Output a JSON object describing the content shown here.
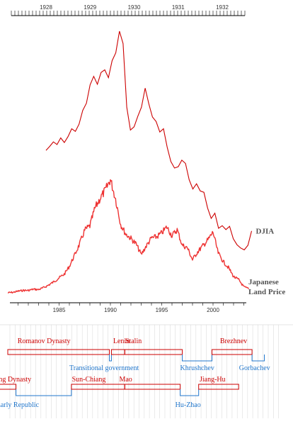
{
  "chart_data": [
    {
      "type": "line",
      "x_axis_position": "top",
      "x": [
        "1928",
        "1929",
        "1930",
        "1931",
        "1932"
      ],
      "series": [
        {
          "name": "DJIA",
          "color": "#cc0000",
          "points": [
            [
              "1928-01",
              199
            ],
            [
              "1928-02",
              205
            ],
            [
              "1928-03",
              212
            ],
            [
              "1928-04",
              208
            ],
            [
              "1928-05",
              218
            ],
            [
              "1928-06",
              211
            ],
            [
              "1928-07",
              220
            ],
            [
              "1928-08",
              232
            ],
            [
              "1928-09",
              228
            ],
            [
              "1928-10",
              239
            ],
            [
              "1928-11",
              260
            ],
            [
              "1928-12",
              271
            ],
            [
              "1929-01",
              299
            ],
            [
              "1929-02",
              312
            ],
            [
              "1929-03",
              300
            ],
            [
              "1929-04",
              318
            ],
            [
              "1929-05",
              322
            ],
            [
              "1929-06",
              310
            ],
            [
              "1929-07",
              336
            ],
            [
              "1929-08",
              348
            ],
            [
              "1929-09",
              381
            ],
            [
              "1929-10",
              362
            ],
            [
              "1929-11",
              265
            ],
            [
              "1929-12",
              230
            ],
            [
              "1930-01",
              235
            ],
            [
              "1930-02",
              251
            ],
            [
              "1930-03",
              265
            ],
            [
              "1930-04",
              294
            ],
            [
              "1930-05",
              270
            ],
            [
              "1930-06",
              250
            ],
            [
              "1930-07",
              243
            ],
            [
              "1930-08",
              227
            ],
            [
              "1930-09",
              232
            ],
            [
              "1930-10",
              204
            ],
            [
              "1930-11",
              182
            ],
            [
              "1930-12",
              172
            ],
            [
              "1931-01",
              174
            ],
            [
              "1931-02",
              184
            ],
            [
              "1931-03",
              179
            ],
            [
              "1931-04",
              154
            ],
            [
              "1931-05",
              140
            ],
            [
              "1931-06",
              148
            ],
            [
              "1931-07",
              137
            ],
            [
              "1931-08",
              135
            ],
            [
              "1931-09",
              111
            ],
            [
              "1931-10",
              95
            ],
            [
              "1931-11",
              103
            ],
            [
              "1931-12",
              80
            ],
            [
              "1932-01",
              84
            ],
            [
              "1932-02",
              78
            ],
            [
              "1932-03",
              83
            ],
            [
              "1932-04",
              64
            ],
            [
              "1932-05",
              55
            ],
            [
              "1932-06",
              50
            ],
            [
              "1932-07",
              47
            ],
            [
              "1932-08",
              54
            ],
            [
              "1932-09",
              76
            ]
          ]
        }
      ]
    },
    {
      "type": "line",
      "x_axis_position": "bottom",
      "x": [
        "1985",
        "1990",
        "1995",
        "2000"
      ],
      "series": [
        {
          "name": "Japanese Land Price",
          "color": "#ee3333",
          "points": [
            [
              1980.0,
              11
            ],
            [
              1980.5,
              12
            ],
            [
              1981.0,
              15
            ],
            [
              1981.5,
              17
            ],
            [
              1982.0,
              17
            ],
            [
              1982.5,
              20
            ],
            [
              1983.0,
              19
            ],
            [
              1983.5,
              24
            ],
            [
              1984.0,
              31
            ],
            [
              1984.5,
              39
            ],
            [
              1985.0,
              49
            ],
            [
              1985.5,
              58
            ],
            [
              1986.0,
              78
            ],
            [
              1986.5,
              106
            ],
            [
              1987.0,
              135
            ],
            [
              1987.5,
              170
            ],
            [
              1988.0,
              181
            ],
            [
              1988.5,
              226
            ],
            [
              1989.0,
              251
            ],
            [
              1989.5,
              271
            ],
            [
              1990.0,
              299
            ],
            [
              1990.5,
              250
            ],
            [
              1991.0,
              185
            ],
            [
              1991.5,
              160
            ],
            [
              1992.0,
              149
            ],
            [
              1992.5,
              135
            ],
            [
              1993.0,
              108
            ],
            [
              1993.5,
              130
            ],
            [
              1994.0,
              150
            ],
            [
              1994.5,
              153
            ],
            [
              1995.0,
              163
            ],
            [
              1995.5,
              178
            ],
            [
              1996.0,
              156
            ],
            [
              1996.5,
              171
            ],
            [
              1997.0,
              132
            ],
            [
              1997.5,
              125
            ],
            [
              1998.0,
              95
            ],
            [
              1998.5,
              115
            ],
            [
              1999.0,
              130
            ],
            [
              1999.5,
              145
            ],
            [
              2000.0,
              165
            ],
            [
              2000.5,
              112
            ],
            [
              2001.0,
              90
            ],
            [
              2001.5,
              75
            ],
            [
              2002.0,
              52
            ],
            [
              2002.5,
              44
            ],
            [
              2003.0,
              26
            ],
            [
              2003.5,
              21
            ]
          ]
        }
      ]
    },
    {
      "type": "timeline",
      "x_axis_position": "shared with the 1985-2000 axis",
      "rows": [
        {
          "periods": [
            {
              "label": "Romanov Dynasty",
              "label_color": "#cc0000",
              "color": "#cc0000",
              "start": 1980.0,
              "end": 1989.9,
              "level": "high"
            },
            {
              "label": "Transitional government",
              "label_color": "#2277cc",
              "color": "#2277cc",
              "start": 1989.9,
              "end": 1990.1,
              "level": "low"
            },
            {
              "label": "Lenin",
              "label_color": "#cc0000",
              "color": "#cc0000",
              "start": 1990.1,
              "end": 1991.4,
              "level": "high"
            },
            {
              "label": "Stalin",
              "label_color": "#cc0000",
              "color": "#cc0000",
              "start": 1991.4,
              "end": 1997.0,
              "level": "high"
            },
            {
              "label": "Khrushchev",
              "label_color": "#2277cc",
              "color": "#2277cc",
              "start": 1997.0,
              "end": 1999.9,
              "level": "low"
            },
            {
              "label": "Brezhnev",
              "label_color": "#cc0000",
              "color": "#cc0000",
              "start": 1999.9,
              "end": 2003.8,
              "level": "high"
            },
            {
              "label": "Gorbachev",
              "label_color": "#2277cc",
              "color": "#2277cc",
              "start": 2003.8,
              "end": 2005.0,
              "level": "low"
            }
          ]
        },
        {
          "periods": [
            {
              "label": "Qing Dynasty",
              "label_color": "#cc0000",
              "color": "#cc0000",
              "start": 1978.0,
              "end": 1980.8,
              "level": "high"
            },
            {
              "label": "Early Republic",
              "label_color": "#2277cc",
              "color": "#2277cc",
              "start": 1980.8,
              "end": 1986.2,
              "level": "low"
            },
            {
              "label": "Sun-Chiang",
              "label_color": "#cc0000",
              "color": "#cc0000",
              "start": 1986.2,
              "end": 1991.4,
              "level": "high"
            },
            {
              "label": "Mao",
              "label_color": "#cc0000",
              "color": "#cc0000",
              "start": 1991.4,
              "end": 1996.8,
              "level": "high"
            },
            {
              "label": "Hu-Zhao",
              "label_color": "#2277cc",
              "color": "#2277cc",
              "start": 1996.8,
              "end": 1998.6,
              "level": "low"
            },
            {
              "label": "Jiang-Hu",
              "label_color": "#cc0000",
              "color": "#cc0000",
              "start": 1998.6,
              "end": 2002.5,
              "level": "high"
            }
          ]
        }
      ]
    }
  ]
}
